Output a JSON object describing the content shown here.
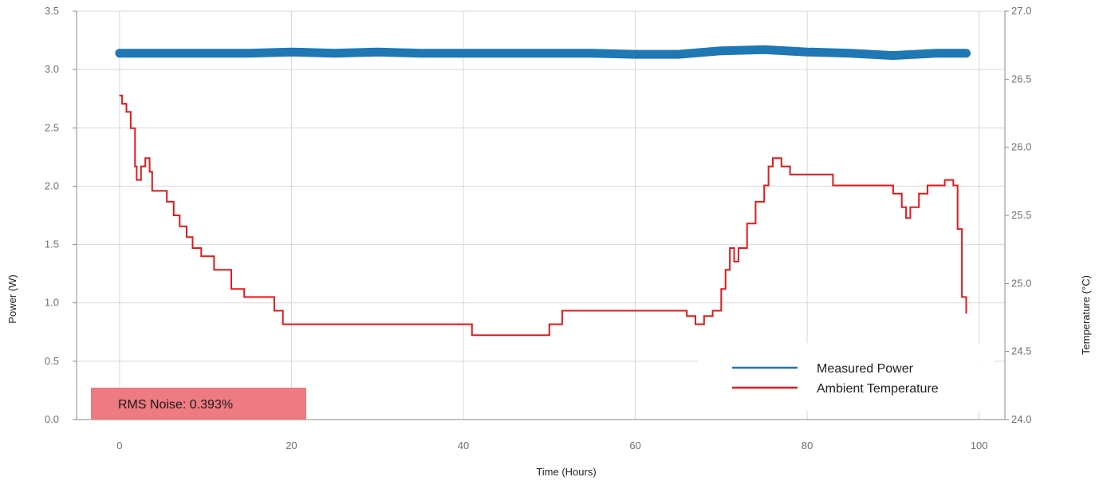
{
  "chart_data": {
    "type": "line",
    "title": "",
    "xlabel": "Time (Hours)",
    "ylabel": "Power (W)",
    "y2label": "Temperature (°C)",
    "xlim": [
      -5,
      103
    ],
    "ylim": [
      0,
      3.5
    ],
    "y2lim": [
      24.0,
      27.0
    ],
    "xticks": [
      0,
      20,
      40,
      60,
      80,
      100
    ],
    "yticks": [
      "0.0",
      "0.5",
      "1.0",
      "1.5",
      "2.0",
      "2.5",
      "3.0",
      "3.5"
    ],
    "y2ticks": [
      "24.0",
      "24.5",
      "25.0",
      "25.5",
      "26.0",
      "26.5",
      "27.0"
    ],
    "grid": true,
    "legend_position": "bottom-right",
    "annotation": "RMS Noise: 0.393%",
    "series": [
      {
        "name": "Measured Power",
        "axis": "left",
        "color": "#1f77b4",
        "x": [
          0,
          5,
          10,
          15,
          20,
          25,
          30,
          35,
          40,
          45,
          50,
          55,
          60,
          65,
          70,
          75,
          80,
          85,
          90,
          95,
          98.5
        ],
        "y": [
          3.14,
          3.14,
          3.14,
          3.14,
          3.15,
          3.14,
          3.15,
          3.14,
          3.14,
          3.14,
          3.14,
          3.14,
          3.13,
          3.13,
          3.16,
          3.17,
          3.15,
          3.14,
          3.12,
          3.14,
          3.14
        ]
      },
      {
        "name": "Ambient Temperature",
        "axis": "right",
        "color": "#e31a1c",
        "x": [
          0,
          0.3,
          0.8,
          1.3,
          1.8,
          2.0,
          2.5,
          3.0,
          3.5,
          3.8,
          4.5,
          5.5,
          6.3,
          7.0,
          7.8,
          8.5,
          9.5,
          11,
          13,
          14.5,
          18,
          19,
          25,
          28,
          30,
          37,
          41,
          46,
          50,
          51.5,
          63,
          64,
          66,
          67,
          68,
          69,
          70,
          70.5,
          71,
          71.5,
          72,
          73,
          74,
          75,
          75.5,
          76,
          77,
          78,
          82,
          83,
          87,
          90,
          91,
          91.5,
          92,
          93,
          94,
          95,
          96,
          97,
          97.5,
          98,
          98.5
        ],
        "y": [
          26.38,
          26.32,
          26.26,
          26.14,
          25.86,
          25.76,
          25.86,
          25.92,
          25.82,
          25.68,
          25.68,
          25.6,
          25.5,
          25.42,
          25.34,
          25.26,
          25.2,
          25.1,
          24.96,
          24.9,
          24.8,
          24.7,
          24.7,
          24.7,
          24.7,
          24.7,
          24.62,
          24.62,
          24.7,
          24.8,
          24.8,
          24.8,
          24.76,
          24.7,
          24.76,
          24.8,
          24.96,
          25.1,
          25.26,
          25.16,
          25.26,
          25.44,
          25.6,
          25.72,
          25.86,
          25.92,
          25.86,
          25.8,
          25.8,
          25.72,
          25.72,
          25.66,
          25.56,
          25.48,
          25.56,
          25.66,
          25.72,
          25.72,
          25.76,
          25.72,
          25.4,
          24.9,
          24.78
        ]
      }
    ]
  }
}
